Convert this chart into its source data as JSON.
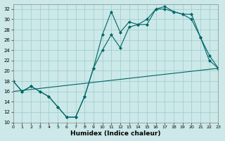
{
  "xlabel": "Humidex (Indice chaleur)",
  "bg_color": "#cce8e8",
  "grid_color": "#99cccc",
  "line_color": "#006666",
  "xlim": [
    0,
    23
  ],
  "ylim": [
    10,
    33
  ],
  "xticks": [
    0,
    1,
    2,
    3,
    4,
    5,
    6,
    7,
    8,
    9,
    10,
    11,
    12,
    13,
    14,
    15,
    16,
    17,
    18,
    19,
    20,
    21,
    22,
    23
  ],
  "yticks": [
    10,
    12,
    14,
    16,
    18,
    20,
    22,
    24,
    26,
    28,
    30,
    32
  ],
  "series_max": {
    "x": [
      0,
      1,
      2,
      3,
      4,
      5,
      6,
      7,
      8,
      9,
      10,
      11,
      12,
      13,
      14,
      15,
      16,
      17,
      18,
      19,
      20,
      21,
      22,
      23
    ],
    "y": [
      18,
      16,
      17,
      16,
      15,
      13,
      11,
      11,
      15,
      20.5,
      27,
      31.5,
      27.5,
      29.5,
      29,
      30,
      32,
      32.5,
      31.5,
      31,
      31,
      26.5,
      23,
      20.5
    ]
  },
  "series_min": {
    "x": [
      0,
      1,
      2,
      3,
      4,
      5,
      6,
      7,
      8,
      9,
      10,
      11,
      12,
      13,
      14,
      15,
      16,
      17,
      18,
      19,
      20,
      21,
      22,
      23
    ],
    "y": [
      18,
      16,
      17,
      16,
      15,
      13,
      11,
      11,
      15,
      20.5,
      24,
      27,
      24.5,
      28.5,
      29,
      29,
      32,
      32,
      31.5,
      31,
      30,
      26.5,
      22,
      20.5
    ]
  },
  "series_trend": {
    "x": [
      0,
      23
    ],
    "y": [
      16,
      20.5
    ]
  }
}
